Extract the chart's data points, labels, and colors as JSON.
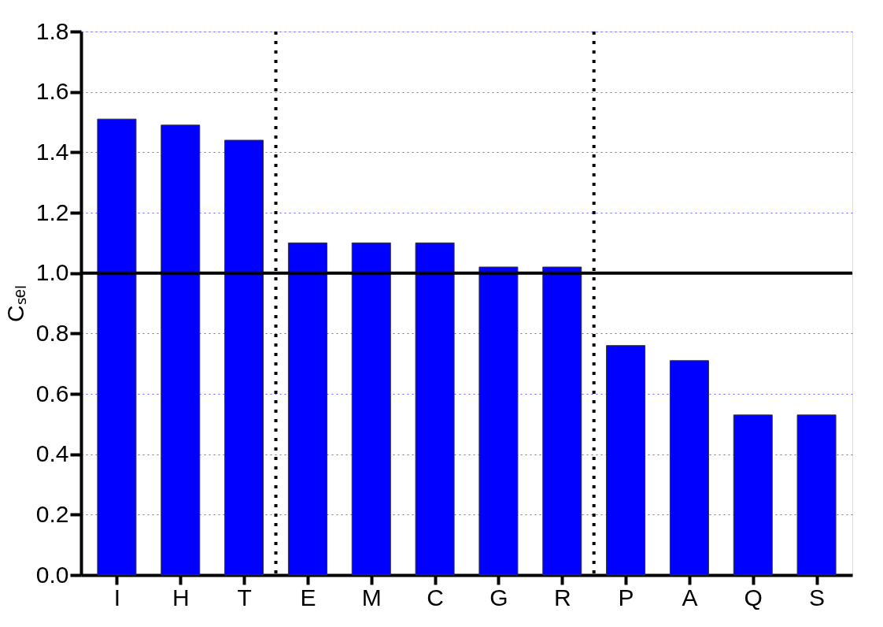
{
  "chart_data": {
    "type": "bar",
    "ylabel": "Cₛₑₗ",
    "categories": [
      "I",
      "H",
      "T",
      "E",
      "M",
      "C",
      "G",
      "R",
      "P",
      "A",
      "Q",
      "S"
    ],
    "values": [
      1.51,
      1.49,
      1.44,
      1.1,
      1.1,
      1.1,
      1.02,
      1.02,
      0.76,
      0.71,
      0.53,
      0.53
    ],
    "color": "#0000ff",
    "ylim": [
      0,
      1.8
    ],
    "yticks": [
      {
        "value": 0,
        "label": "0.0"
      },
      {
        "value": 0.2,
        "label": "0.2"
      },
      {
        "value": 0.4,
        "label": "0.4"
      },
      {
        "value": 0.6,
        "label": "0.6"
      },
      {
        "value": 0.8,
        "label": "0.8"
      },
      {
        "value": 1.0,
        "label": "1.0"
      },
      {
        "value": 1.2,
        "label": "1.2"
      },
      {
        "value": 1.4,
        "label": "1.4"
      },
      {
        "value": 1.6,
        "label": "1.6"
      },
      {
        "value": 1.8,
        "label": "1.8"
      }
    ],
    "grid": "y",
    "ref_lines": [
      {
        "axis": "y",
        "value": 1.0,
        "color": "#000000",
        "line_style": "solid"
      }
    ]
  }
}
